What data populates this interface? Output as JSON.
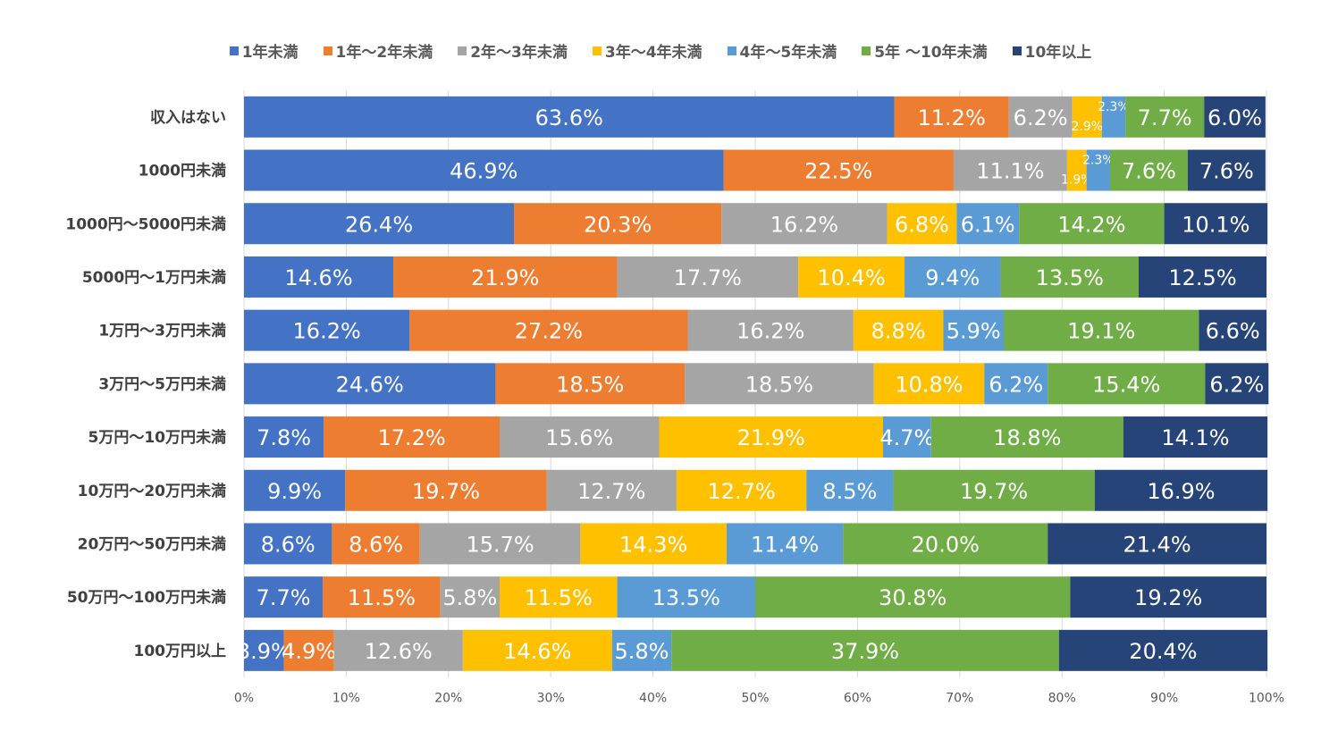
{
  "chart_data": {
    "type": "bar",
    "orientation": "horizontal",
    "stacked": "percent",
    "categories": [
      "収入はない",
      "1000円未満",
      "1000円～5000円未満",
      "5000円～1万円未満",
      "1万円～3万円未満",
      "3万円～5万円未満",
      "5万円～10万円未満",
      "10万円～20万円未満",
      "20万円～50万円未満",
      "50万円～100万円未満",
      "100万円以上"
    ],
    "series": [
      {
        "name": "1年未満",
        "color": "#4472C4",
        "values": [
          63.6,
          46.9,
          26.4,
          14.6,
          16.2,
          24.6,
          7.8,
          9.9,
          8.6,
          7.7,
          3.9
        ]
      },
      {
        "name": "1年～2年未満",
        "color": "#ED7D31",
        "values": [
          11.2,
          22.5,
          20.3,
          21.9,
          27.2,
          18.5,
          17.2,
          19.7,
          8.6,
          11.5,
          4.9
        ]
      },
      {
        "name": "2年～3年未満",
        "color": "#A5A5A5",
        "values": [
          6.2,
          11.1,
          16.2,
          17.7,
          16.2,
          18.5,
          15.6,
          12.7,
          15.7,
          5.8,
          12.6
        ]
      },
      {
        "name": "3年～4年未満",
        "color": "#FFC000",
        "values": [
          2.9,
          1.9,
          6.8,
          10.4,
          8.8,
          10.8,
          21.9,
          12.7,
          14.3,
          11.5,
          14.6
        ]
      },
      {
        "name": "4年～5年未満",
        "color": "#5B9BD5",
        "values": [
          2.3,
          2.3,
          6.1,
          9.4,
          5.9,
          6.2,
          4.7,
          8.5,
          11.4,
          13.5,
          5.8
        ]
      },
      {
        "name": "5年 ～10年未満",
        "color": "#70AD47",
        "values": [
          7.7,
          7.6,
          14.2,
          13.5,
          19.1,
          15.4,
          18.8,
          19.7,
          20.0,
          30.8,
          37.9
        ]
      },
      {
        "name": "10年以上",
        "color": "#264478",
        "values": [
          6.0,
          7.6,
          10.1,
          12.5,
          6.6,
          6.2,
          14.1,
          16.9,
          21.4,
          19.2,
          20.4
        ]
      }
    ],
    "x_ticks": [
      "0%",
      "10%",
      "20%",
      "30%",
      "40%",
      "50%",
      "60%",
      "70%",
      "80%",
      "90%",
      "100%"
    ],
    "xlim": [
      0,
      100
    ],
    "grid": true,
    "legend": "top"
  }
}
